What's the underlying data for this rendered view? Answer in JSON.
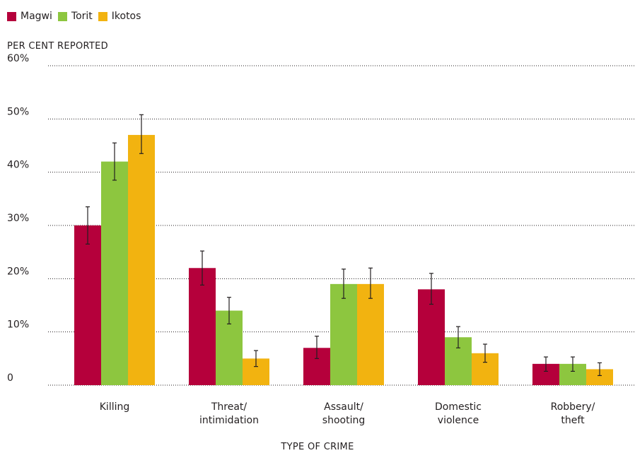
{
  "chart_data": {
    "type": "bar",
    "ylabel": "PER CENT REPORTED",
    "xlabel": "TYPE OF CRIME",
    "ylim": [
      0,
      60
    ],
    "yticks": [
      "0",
      "10%",
      "20%",
      "30%",
      "40%",
      "50%",
      "60%"
    ],
    "grid": "horizontal dotted",
    "legend_position": "top-left",
    "categories": [
      [
        "Killing"
      ],
      [
        "Threat/",
        "intimidation"
      ],
      [
        "Assault/",
        "shooting"
      ],
      [
        "Domestic",
        "violence"
      ],
      [
        "Robbery/",
        "theft"
      ]
    ],
    "series": [
      {
        "name": "Magwi",
        "color": "#b5003b",
        "values": [
          30,
          22,
          7,
          18,
          4
        ],
        "error_low": [
          26.5,
          18.8,
          5,
          15.2,
          2.6
        ],
        "error_high": [
          33.5,
          25.2,
          9.2,
          21,
          5.3
        ]
      },
      {
        "name": "Torit",
        "color": "#8dc63f",
        "values": [
          42,
          14,
          19,
          9,
          4
        ],
        "error_low": [
          38.5,
          11.5,
          16.3,
          7,
          2.6
        ],
        "error_high": [
          45.5,
          16.5,
          21.8,
          11,
          5.3
        ]
      },
      {
        "name": "Ikotos",
        "color": "#f2b310",
        "values": [
          47,
          5,
          19,
          6,
          3
        ],
        "error_low": [
          43.5,
          3.5,
          16.3,
          4.3,
          1.8
        ],
        "error_high": [
          50.8,
          6.5,
          22,
          7.7,
          4.2
        ]
      }
    ]
  }
}
